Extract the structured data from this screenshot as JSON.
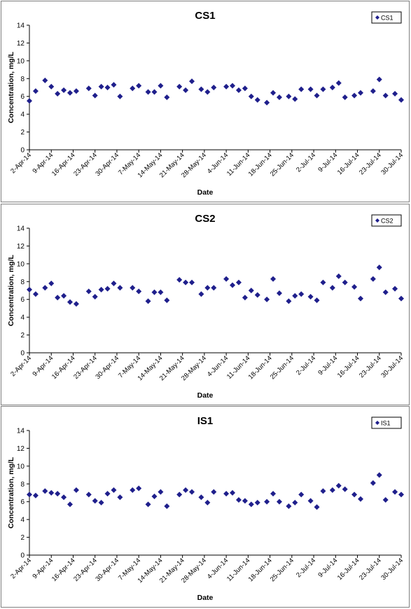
{
  "chart_data": [
    {
      "type": "scatter",
      "title": "CS1",
      "xlabel": "Date",
      "ylabel": "Concentration, mg/L",
      "ylim": [
        0,
        14
      ],
      "yticks": [
        "0",
        "2",
        "4",
        "6",
        "8",
        "10",
        "12",
        "14"
      ],
      "xlim": [
        "2014-04-02",
        "2014-07-30"
      ],
      "xticks": [
        "2-Apr-14",
        "9-Apr-14",
        "16-Apr-14",
        "23-Apr-14",
        "30-Apr-14",
        "7-May-14",
        "14-May-14",
        "21-May-14",
        "28-May-14",
        "4-Jun-14",
        "11-Jun-14",
        "18-Jun-14",
        "25-Jun-14",
        "2-Jul-14",
        "9-Jul-14",
        "16-Jul-14",
        "23-Jul-14",
        "30-Jul-14"
      ],
      "grid": false,
      "legend_position": "top-right",
      "marker_color": "#1f1f8c",
      "series": [
        {
          "name": "CS1",
          "points": [
            [
              "2014-04-02",
              5.5
            ],
            [
              "2014-04-04",
              6.6
            ],
            [
              "2014-04-07",
              7.8
            ],
            [
              "2014-04-09",
              7.1
            ],
            [
              "2014-04-11",
              6.3
            ],
            [
              "2014-04-13",
              6.7
            ],
            [
              "2014-04-15",
              6.4
            ],
            [
              "2014-04-17",
              6.6
            ],
            [
              "2014-04-21",
              6.9
            ],
            [
              "2014-04-23",
              6.1
            ],
            [
              "2014-04-25",
              7.1
            ],
            [
              "2014-04-27",
              7.0
            ],
            [
              "2014-04-29",
              7.3
            ],
            [
              "2014-05-01",
              6.0
            ],
            [
              "2014-05-05",
              6.9
            ],
            [
              "2014-05-07",
              7.2
            ],
            [
              "2014-05-10",
              6.5
            ],
            [
              "2014-05-12",
              6.5
            ],
            [
              "2014-05-14",
              7.2
            ],
            [
              "2014-05-16",
              5.9
            ],
            [
              "2014-05-20",
              7.1
            ],
            [
              "2014-05-22",
              6.7
            ],
            [
              "2014-05-24",
              7.7
            ],
            [
              "2014-05-27",
              6.8
            ],
            [
              "2014-05-29",
              6.5
            ],
            [
              "2014-05-31",
              7.0
            ],
            [
              "2014-06-04",
              7.1
            ],
            [
              "2014-06-06",
              7.2
            ],
            [
              "2014-06-08",
              6.7
            ],
            [
              "2014-06-10",
              6.9
            ],
            [
              "2014-06-12",
              6.0
            ],
            [
              "2014-06-14",
              5.6
            ],
            [
              "2014-06-17",
              5.3
            ],
            [
              "2014-06-19",
              6.4
            ],
            [
              "2014-06-21",
              5.9
            ],
            [
              "2014-06-24",
              6.0
            ],
            [
              "2014-06-26",
              5.7
            ],
            [
              "2014-06-28",
              6.8
            ],
            [
              "2014-07-01",
              6.8
            ],
            [
              "2014-07-03",
              6.1
            ],
            [
              "2014-07-05",
              6.8
            ],
            [
              "2014-07-08",
              7.0
            ],
            [
              "2014-07-10",
              7.5
            ],
            [
              "2014-07-12",
              5.9
            ],
            [
              "2014-07-15",
              6.1
            ],
            [
              "2014-07-17",
              6.4
            ],
            [
              "2014-07-21",
              6.6
            ],
            [
              "2014-07-23",
              7.9
            ],
            [
              "2014-07-25",
              6.1
            ],
            [
              "2014-07-28",
              6.3
            ],
            [
              "2014-07-30",
              5.6
            ]
          ]
        }
      ]
    },
    {
      "type": "scatter",
      "title": "CS2",
      "xlabel": "Date",
      "ylabel": "Concentration, mg/L",
      "ylim": [
        0,
        14
      ],
      "yticks": [
        "0",
        "2",
        "4",
        "6",
        "8",
        "10",
        "12",
        "14"
      ],
      "xlim": [
        "2014-04-02",
        "2014-07-30"
      ],
      "xticks": [
        "2-Apr-14",
        "9-Apr-14",
        "16-Apr-14",
        "23-Apr-14",
        "30-Apr-14",
        "7-May-14",
        "14-May-14",
        "21-May-14",
        "28-May-14",
        "4-Jun-14",
        "11-Jun-14",
        "18-Jun-14",
        "25-Jun-14",
        "2-Jul-14",
        "9-Jul-14",
        "16-Jul-14",
        "23-Jul-14",
        "30-Jul-14"
      ],
      "grid": false,
      "legend_position": "top-right",
      "marker_color": "#1f1f8c",
      "series": [
        {
          "name": "CS2",
          "points": [
            [
              "2014-04-02",
              7.1
            ],
            [
              "2014-04-04",
              6.6
            ],
            [
              "2014-04-07",
              7.3
            ],
            [
              "2014-04-09",
              7.8
            ],
            [
              "2014-04-11",
              6.2
            ],
            [
              "2014-04-13",
              6.4
            ],
            [
              "2014-04-15",
              5.7
            ],
            [
              "2014-04-17",
              5.5
            ],
            [
              "2014-04-21",
              6.9
            ],
            [
              "2014-04-23",
              6.3
            ],
            [
              "2014-04-25",
              7.1
            ],
            [
              "2014-04-27",
              7.2
            ],
            [
              "2014-04-29",
              7.8
            ],
            [
              "2014-05-01",
              7.3
            ],
            [
              "2014-05-05",
              7.3
            ],
            [
              "2014-05-07",
              6.9
            ],
            [
              "2014-05-10",
              5.8
            ],
            [
              "2014-05-12",
              6.8
            ],
            [
              "2014-05-14",
              6.8
            ],
            [
              "2014-05-16",
              5.9
            ],
            [
              "2014-05-20",
              8.2
            ],
            [
              "2014-05-22",
              7.9
            ],
            [
              "2014-05-24",
              7.9
            ],
            [
              "2014-05-27",
              6.6
            ],
            [
              "2014-05-29",
              7.3
            ],
            [
              "2014-05-31",
              7.3
            ],
            [
              "2014-06-04",
              8.3
            ],
            [
              "2014-06-06",
              7.6
            ],
            [
              "2014-06-08",
              7.9
            ],
            [
              "2014-06-10",
              6.2
            ],
            [
              "2014-06-12",
              7.0
            ],
            [
              "2014-06-14",
              6.5
            ],
            [
              "2014-06-17",
              6.0
            ],
            [
              "2014-06-19",
              8.3
            ],
            [
              "2014-06-21",
              6.7
            ],
            [
              "2014-06-24",
              5.8
            ],
            [
              "2014-06-26",
              6.4
            ],
            [
              "2014-06-28",
              6.6
            ],
            [
              "2014-07-01",
              6.3
            ],
            [
              "2014-07-03",
              5.9
            ],
            [
              "2014-07-05",
              7.9
            ],
            [
              "2014-07-08",
              7.3
            ],
            [
              "2014-07-10",
              8.6
            ],
            [
              "2014-07-12",
              7.9
            ],
            [
              "2014-07-15",
              7.4
            ],
            [
              "2014-07-17",
              6.1
            ],
            [
              "2014-07-21",
              8.3
            ],
            [
              "2014-07-23",
              9.6
            ],
            [
              "2014-07-25",
              6.8
            ],
            [
              "2014-07-28",
              7.2
            ],
            [
              "2014-07-30",
              6.1
            ]
          ]
        }
      ]
    },
    {
      "type": "scatter",
      "title": "IS1",
      "xlabel": "Date",
      "ylabel": "Concentration, mg/L",
      "ylim": [
        0,
        14
      ],
      "yticks": [
        "0",
        "2",
        "4",
        "6",
        "8",
        "10",
        "12",
        "14"
      ],
      "xlim": [
        "2014-04-02",
        "2014-07-30"
      ],
      "xticks": [
        "2-Apr-14",
        "9-Apr-14",
        "16-Apr-14",
        "23-Apr-14",
        "30-Apr-14",
        "7-May-14",
        "14-May-14",
        "21-May-14",
        "28-May-14",
        "4-Jun-14",
        "11-Jun-14",
        "18-Jun-14",
        "25-Jun-14",
        "2-Jul-14",
        "9-Jul-14",
        "16-Jul-14",
        "23-Jul-14",
        "30-Jul-14"
      ],
      "grid": false,
      "legend_position": "top-right",
      "marker_color": "#1f1f8c",
      "series": [
        {
          "name": "IS1",
          "points": [
            [
              "2014-04-02",
              6.8
            ],
            [
              "2014-04-04",
              6.7
            ],
            [
              "2014-04-07",
              7.2
            ],
            [
              "2014-04-09",
              7.0
            ],
            [
              "2014-04-11",
              6.9
            ],
            [
              "2014-04-13",
              6.5
            ],
            [
              "2014-04-15",
              5.7
            ],
            [
              "2014-04-17",
              7.3
            ],
            [
              "2014-04-21",
              6.8
            ],
            [
              "2014-04-23",
              6.1
            ],
            [
              "2014-04-25",
              5.9
            ],
            [
              "2014-04-27",
              6.9
            ],
            [
              "2014-04-29",
              7.3
            ],
            [
              "2014-05-01",
              6.5
            ],
            [
              "2014-05-05",
              7.3
            ],
            [
              "2014-05-07",
              7.5
            ],
            [
              "2014-05-10",
              5.7
            ],
            [
              "2014-05-12",
              6.6
            ],
            [
              "2014-05-14",
              7.1
            ],
            [
              "2014-05-16",
              5.5
            ],
            [
              "2014-05-20",
              6.8
            ],
            [
              "2014-05-22",
              7.3
            ],
            [
              "2014-05-24",
              7.1
            ],
            [
              "2014-05-27",
              6.5
            ],
            [
              "2014-05-29",
              5.9
            ],
            [
              "2014-05-31",
              7.1
            ],
            [
              "2014-06-04",
              6.9
            ],
            [
              "2014-06-06",
              7.0
            ],
            [
              "2014-06-08",
              6.2
            ],
            [
              "2014-06-10",
              6.1
            ],
            [
              "2014-06-12",
              5.7
            ],
            [
              "2014-06-14",
              5.9
            ],
            [
              "2014-06-17",
              6.0
            ],
            [
              "2014-06-19",
              6.9
            ],
            [
              "2014-06-21",
              6.0
            ],
            [
              "2014-06-24",
              5.5
            ],
            [
              "2014-06-26",
              5.9
            ],
            [
              "2014-06-28",
              6.8
            ],
            [
              "2014-07-01",
              6.1
            ],
            [
              "2014-07-03",
              5.4
            ],
            [
              "2014-07-05",
              7.2
            ],
            [
              "2014-07-08",
              7.3
            ],
            [
              "2014-07-10",
              7.8
            ],
            [
              "2014-07-12",
              7.4
            ],
            [
              "2014-07-15",
              6.8
            ],
            [
              "2014-07-17",
              6.3
            ],
            [
              "2014-07-21",
              8.1
            ],
            [
              "2014-07-23",
              9.0
            ],
            [
              "2014-07-25",
              6.2
            ],
            [
              "2014-07-28",
              7.1
            ],
            [
              "2014-07-30",
              6.8
            ]
          ]
        }
      ]
    }
  ]
}
